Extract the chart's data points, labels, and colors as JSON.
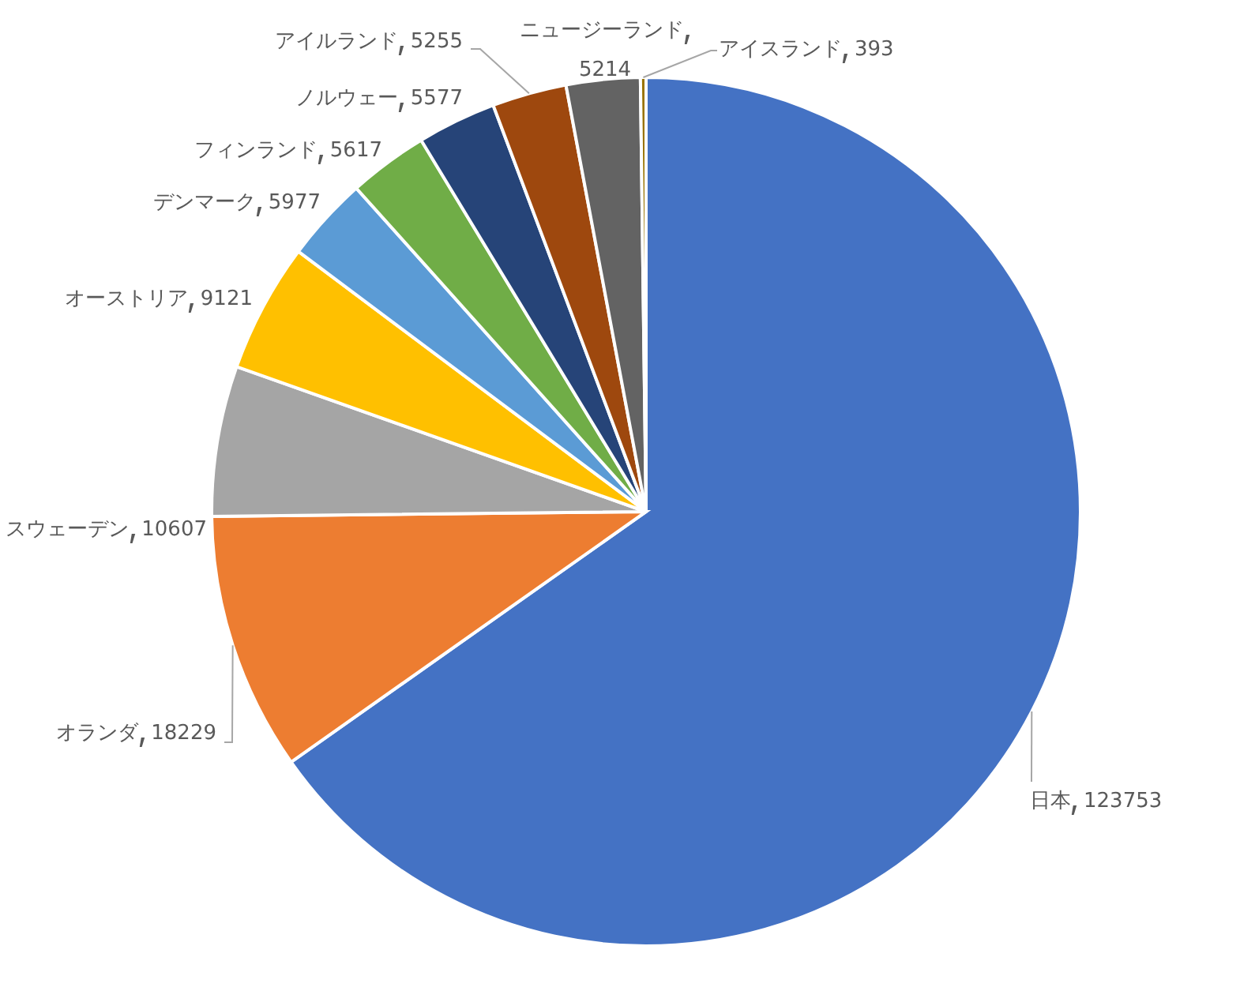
{
  "chart_data": {
    "type": "pie",
    "categories": [
      "日本",
      "オランダ",
      "スウェーデン",
      "オーストリア",
      "デンマーク",
      "フィンランド",
      "ノルウェー",
      "アイルランド",
      "ニュージーランド",
      "アイスランド"
    ],
    "values": [
      123753,
      18229,
      10607,
      9121,
      5977,
      5617,
      5577,
      5255,
      5214,
      393
    ],
    "colors": [
      "#4472c4",
      "#ed7d31",
      "#a5a5a5",
      "#ffc000",
      "#5b9bd5",
      "#70ad47",
      "#264478",
      "#9e480e",
      "#636363",
      "#997300"
    ],
    "data_labels": true
  }
}
